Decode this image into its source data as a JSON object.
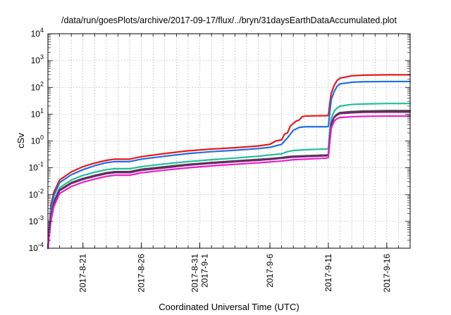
{
  "chart_data": {
    "type": "line",
    "title": "/data/run/goesPlots/archive/2017-09-17/flux/../bryn/31daysEarthDataAccumulated.plot",
    "xlabel": "Coordinated Universal Time (UTC)",
    "ylabel": "cSv",
    "yscale": "log",
    "ylim": [
      0.0001,
      10000
    ],
    "xlim": [
      "2017-08-18",
      "2017-09-18"
    ],
    "grid": true,
    "legend": "none",
    "y_ticks": [
      {
        "base": "10",
        "exp": "-4"
      },
      {
        "base": "10",
        "exp": "-3"
      },
      {
        "base": "10",
        "exp": "-2"
      },
      {
        "base": "10",
        "exp": "-1"
      },
      {
        "base": "10",
        "exp": "0"
      },
      {
        "base": "10",
        "exp": "1"
      },
      {
        "base": "10",
        "exp": "2"
      },
      {
        "base": "10",
        "exp": "3"
      },
      {
        "base": "10",
        "exp": "4"
      }
    ],
    "x_ticks": [
      {
        "date": "2017-08-21",
        "lines": [
          "2017-8-21"
        ]
      },
      {
        "date": "2017-08-26",
        "lines": [
          "2017-8-26"
        ]
      },
      {
        "date": "2017-08-31",
        "lines": [
          "2017-8-31",
          "2017-9-1"
        ]
      },
      {
        "date": "2017-09-06",
        "lines": [
          "2017-9-6"
        ]
      },
      {
        "date": "2017-09-11",
        "lines": [
          "2017-9-11"
        ]
      },
      {
        "date": "2017-09-16",
        "lines": [
          "2017-9-16"
        ]
      }
    ],
    "series": [
      {
        "color": "#e41a1c",
        "x": [
          "2017-08-18",
          "2017-08-18T06:00",
          "2017-08-18T12:00",
          "2017-08-19",
          "2017-08-20",
          "2017-08-21",
          "2017-08-22",
          "2017-08-23",
          "2017-08-23T18:00",
          "2017-08-25",
          "2017-08-26",
          "2017-08-28",
          "2017-08-30",
          "2017-09-01",
          "2017-09-03",
          "2017-09-05",
          "2017-09-06",
          "2017-09-06T12:00",
          "2017-09-07",
          "2017-09-07T06:00",
          "2017-09-07T12:00",
          "2017-09-07T18:00",
          "2017-09-08",
          "2017-09-08T06:00",
          "2017-09-08T12:00",
          "2017-09-08T18:00",
          "2017-09-09",
          "2017-09-10",
          "2017-09-10T20:00",
          "2017-09-11",
          "2017-09-11T03:00",
          "2017-09-11T06:00",
          "2017-09-11T12:00",
          "2017-09-11T18:00",
          "2017-09-12",
          "2017-09-13",
          "2017-09-14",
          "2017-09-16",
          "2017-09-18"
        ],
        "values": [
          0.0001,
          0.004,
          0.012,
          0.035,
          0.07,
          0.11,
          0.15,
          0.19,
          0.21,
          0.21,
          0.26,
          0.34,
          0.43,
          0.5,
          0.56,
          0.65,
          0.75,
          1.0,
          1.1,
          1.8,
          2.0,
          3.6,
          4.5,
          5.5,
          6.0,
          8.0,
          8.5,
          8.7,
          8.8,
          9.0,
          25,
          60,
          120,
          180,
          220,
          270,
          285,
          295,
          295
        ]
      },
      {
        "color": "#1f6fe0",
        "x": [
          "2017-08-18",
          "2017-08-18T06:00",
          "2017-08-18T12:00",
          "2017-08-19",
          "2017-08-20",
          "2017-08-21",
          "2017-08-22",
          "2017-08-23",
          "2017-08-23T18:00",
          "2017-08-25",
          "2017-08-26",
          "2017-08-28",
          "2017-08-30",
          "2017-09-01",
          "2017-09-03",
          "2017-09-05",
          "2017-09-06",
          "2017-09-07",
          "2017-09-07T12:00",
          "2017-09-07T18:00",
          "2017-09-08",
          "2017-09-08T12:00",
          "2017-09-09",
          "2017-09-10",
          "2017-09-10T20:00",
          "2017-09-11",
          "2017-09-11T03:00",
          "2017-09-11T06:00",
          "2017-09-11T12:00",
          "2017-09-11T18:00",
          "2017-09-12",
          "2017-09-13",
          "2017-09-14",
          "2017-09-16",
          "2017-09-18"
        ],
        "values": [
          0.0001,
          0.003,
          0.009,
          0.028,
          0.055,
          0.085,
          0.12,
          0.155,
          0.17,
          0.17,
          0.21,
          0.27,
          0.34,
          0.4,
          0.45,
          0.52,
          0.58,
          0.75,
          1.3,
          1.8,
          2.5,
          3.2,
          3.4,
          3.4,
          3.4,
          3.5,
          12,
          35,
          70,
          110,
          135,
          155,
          162,
          165,
          165
        ]
      },
      {
        "color": "#1fbf99",
        "x": [
          "2017-08-18",
          "2017-08-18T06:00",
          "2017-08-18T12:00",
          "2017-08-19",
          "2017-08-20",
          "2017-08-21",
          "2017-08-22",
          "2017-08-23",
          "2017-08-23T18:00",
          "2017-08-25",
          "2017-08-26",
          "2017-08-28",
          "2017-08-30",
          "2017-09-01",
          "2017-09-03",
          "2017-09-05",
          "2017-09-06",
          "2017-09-07",
          "2017-09-07T12:00",
          "2017-09-08",
          "2017-09-09",
          "2017-09-10",
          "2017-09-10T20:00",
          "2017-09-11",
          "2017-09-11T03:00",
          "2017-09-11T06:00",
          "2017-09-11T12:00",
          "2017-09-11T18:00",
          "2017-09-12",
          "2017-09-13",
          "2017-09-14",
          "2017-09-16",
          "2017-09-18"
        ],
        "values": [
          0.0001,
          0.002,
          0.006,
          0.018,
          0.035,
          0.052,
          0.068,
          0.085,
          0.092,
          0.092,
          0.11,
          0.14,
          0.17,
          0.2,
          0.23,
          0.27,
          0.3,
          0.33,
          0.4,
          0.44,
          0.47,
          0.49,
          0.5,
          0.52,
          2.5,
          7,
          13,
          17,
          20,
          23,
          24,
          25,
          25
        ]
      },
      {
        "color": "#444444",
        "x": [
          "2017-08-18",
          "2017-08-18T06:00",
          "2017-08-18T12:00",
          "2017-08-19",
          "2017-08-20",
          "2017-08-21",
          "2017-08-22",
          "2017-08-23",
          "2017-08-23T18:00",
          "2017-08-25",
          "2017-08-26",
          "2017-08-28",
          "2017-08-30",
          "2017-09-01",
          "2017-09-03",
          "2017-09-05",
          "2017-09-06",
          "2017-09-07",
          "2017-09-07T12:00",
          "2017-09-08",
          "2017-09-09",
          "2017-09-10",
          "2017-09-10T20:00",
          "2017-09-11",
          "2017-09-11T03:00",
          "2017-09-11T06:00",
          "2017-09-11T12:00",
          "2017-09-11T18:00",
          "2017-09-12",
          "2017-09-13",
          "2017-09-14",
          "2017-09-16",
          "2017-09-18"
        ],
        "values": [
          0.0001,
          0.0015,
          0.005,
          0.015,
          0.028,
          0.04,
          0.052,
          0.065,
          0.072,
          0.072,
          0.088,
          0.11,
          0.135,
          0.158,
          0.18,
          0.205,
          0.22,
          0.24,
          0.26,
          0.27,
          0.28,
          0.29,
          0.3,
          0.31,
          1.3,
          4.5,
          8,
          10,
          11.5,
          12.5,
          13,
          13.5,
          13.5
        ]
      },
      {
        "color": "#7a1f70",
        "x": [
          "2017-08-18",
          "2017-08-18T06:00",
          "2017-08-18T12:00",
          "2017-08-19",
          "2017-08-20",
          "2017-08-21",
          "2017-08-22",
          "2017-08-23",
          "2017-08-23T18:00",
          "2017-08-25",
          "2017-08-26",
          "2017-08-28",
          "2017-08-30",
          "2017-09-01",
          "2017-09-03",
          "2017-09-05",
          "2017-09-06",
          "2017-09-07",
          "2017-09-07T12:00",
          "2017-09-08",
          "2017-09-09",
          "2017-09-10",
          "2017-09-10T20:00",
          "2017-09-11",
          "2017-09-11T03:00",
          "2017-09-11T06:00",
          "2017-09-11T12:00",
          "2017-09-11T18:00",
          "2017-09-12",
          "2017-09-13",
          "2017-09-14",
          "2017-09-16",
          "2017-09-18"
        ],
        "values": [
          0.0001,
          0.0014,
          0.0045,
          0.014,
          0.026,
          0.037,
          0.048,
          0.06,
          0.066,
          0.066,
          0.081,
          0.1,
          0.125,
          0.147,
          0.168,
          0.19,
          0.205,
          0.225,
          0.24,
          0.25,
          0.26,
          0.27,
          0.28,
          0.29,
          1.2,
          4.0,
          7.5,
          9.3,
          10.5,
          11.3,
          11.8,
          12,
          12
        ]
      },
      {
        "color": "#e81fc8",
        "x": [
          "2017-08-18",
          "2017-08-18T06:00",
          "2017-08-18T12:00",
          "2017-08-19",
          "2017-08-20",
          "2017-08-21",
          "2017-08-22",
          "2017-08-23",
          "2017-08-23T18:00",
          "2017-08-25",
          "2017-08-26",
          "2017-08-28",
          "2017-08-30",
          "2017-09-01",
          "2017-09-03",
          "2017-09-05",
          "2017-09-06",
          "2017-09-07",
          "2017-09-07T12:00",
          "2017-09-08",
          "2017-09-09",
          "2017-09-10",
          "2017-09-10T20:00",
          "2017-09-11",
          "2017-09-11T03:00",
          "2017-09-11T06:00",
          "2017-09-11T12:00",
          "2017-09-11T18:00",
          "2017-09-12",
          "2017-09-13",
          "2017-09-14",
          "2017-09-16",
          "2017-09-18"
        ],
        "values": [
          0.0001,
          0.001,
          0.0035,
          0.011,
          0.02,
          0.029,
          0.038,
          0.048,
          0.053,
          0.053,
          0.065,
          0.082,
          0.1,
          0.118,
          0.135,
          0.153,
          0.165,
          0.178,
          0.19,
          0.2,
          0.21,
          0.22,
          0.23,
          0.24,
          0.9,
          3,
          5.5,
          6.8,
          7.5,
          8,
          8.3,
          8.5,
          8.5
        ]
      }
    ]
  }
}
